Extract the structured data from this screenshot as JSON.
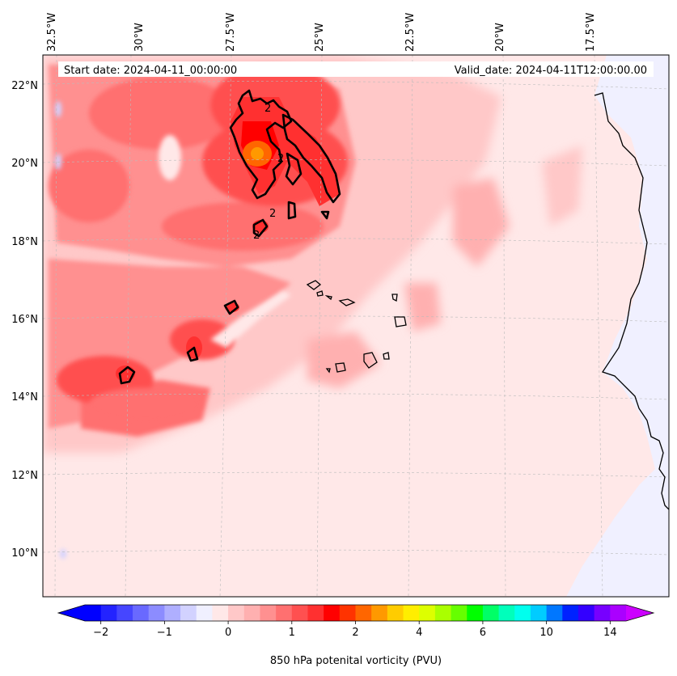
{
  "map": {
    "header_left": "Start date: 2024-04-11_00:00:00",
    "header_right": "Valid_date: 2024-04-11T12:00:00.00",
    "lon_labels": [
      "32.5°W",
      "30°W",
      "27.5°W",
      "25°W",
      "22.5°W",
      "20°W",
      "17.5°W"
    ],
    "lat_labels": [
      "22°N",
      "20°N",
      "18°N",
      "16°N",
      "14°N",
      "12°N",
      "10°N"
    ],
    "contour_label": "2",
    "colors": {
      "background": "#ffe8e8",
      "land": "#f0f0ff",
      "coast": "#000000"
    }
  },
  "colorbar": {
    "tick_labels": [
      "−2",
      "−1",
      "0",
      "1",
      "2",
      "4",
      "6",
      "10",
      "14"
    ],
    "title": "850 hPa potenital vorticity (PVU)",
    "colors": [
      "#0000ff",
      "#2323ff",
      "#4646ff",
      "#6969ff",
      "#8c8cff",
      "#afafff",
      "#d2d2ff",
      "#f0f0ff",
      "#ffe8e8",
      "#ffc8c8",
      "#ffb0b0",
      "#ff9090",
      "#ff7070",
      "#ff5050",
      "#ff3030",
      "#ff0000",
      "#ff3300",
      "#ff6600",
      "#ff9900",
      "#ffcc00",
      "#ffee00",
      "#ddff00",
      "#aaff00",
      "#66ff00",
      "#00ff00",
      "#00ff66",
      "#00ffbb",
      "#00ffee",
      "#00ccff",
      "#0077ff",
      "#0022ff",
      "#3300ff",
      "#7700ff",
      "#aa00ff"
    ],
    "extend_min_color": "#0000ff",
    "extend_max_color": "#cc00ff"
  }
}
